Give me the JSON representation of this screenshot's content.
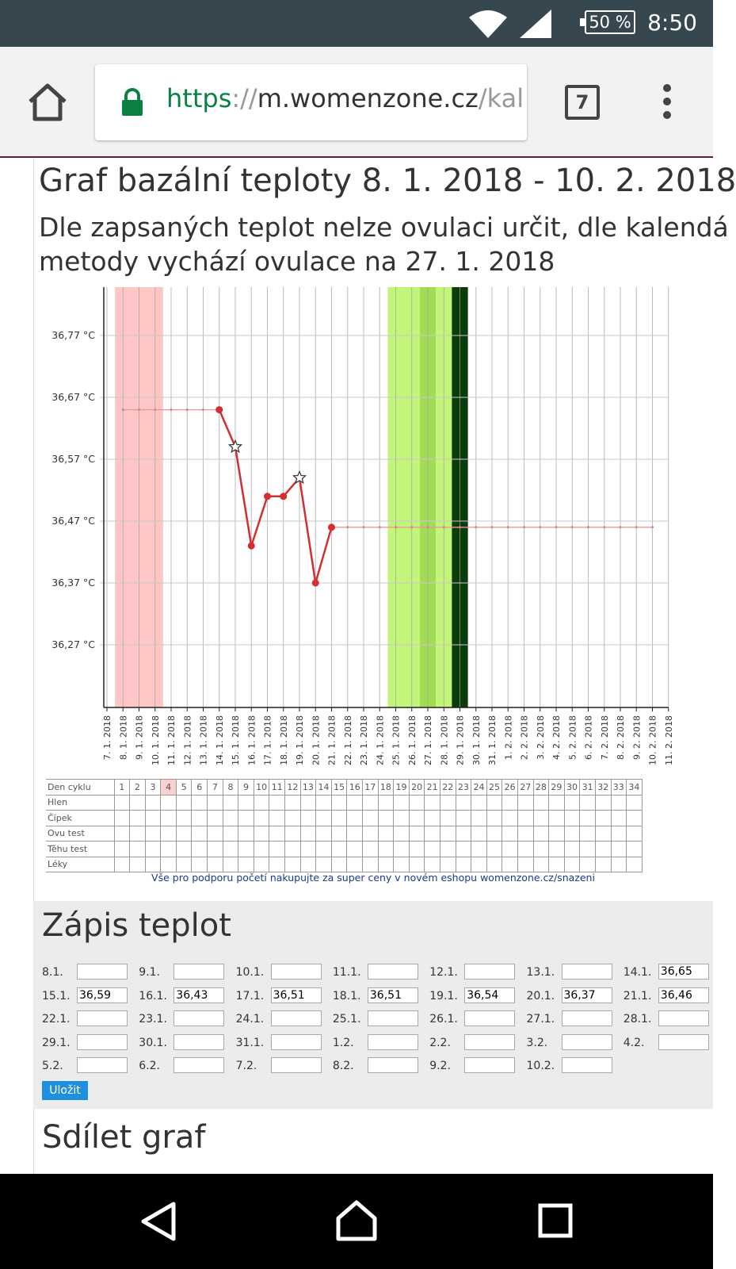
{
  "statusbar": {
    "battery": "50 %",
    "time": "8:50",
    "icons": [
      "wifi-icon",
      "signal-icon",
      "battery-icon"
    ]
  },
  "browser": {
    "url_scheme": "https",
    "url_sep": "://",
    "url_host": "m.womenzone.cz",
    "url_path": "/kal",
    "tab_count": "7",
    "icons": [
      "home-icon",
      "lock-icon",
      "menu-icon"
    ]
  },
  "page": {
    "title": "Graf bazální teploty 8. 1. 2018 - 10. 2. 2018",
    "subtitle_line1": "Dle zapsaných teplot nelze ovulaci určit, dle kalendá",
    "subtitle_line2": "metody vychází ovulace na 27. 1. 2018"
  },
  "chart_data": {
    "type": "line",
    "title": "",
    "xlabel": "",
    "ylabel": "",
    "ylim": [
      36.19,
      36.87
    ],
    "yticks": [
      "36,77 °C",
      "36,67 °C",
      "36,57 °C",
      "36,47 °C",
      "36,37 °C",
      "36,27 °C"
    ],
    "ytick_values": [
      36.77,
      36.67,
      36.57,
      36.47,
      36.37,
      36.27
    ],
    "x": [
      "7. 1. 2018",
      "8. 1. 2018",
      "9. 1. 2018",
      "10. 1. 2018",
      "11. 1. 2018",
      "12. 1. 2018",
      "13. 1. 2018",
      "14. 1. 2018",
      "15. 1. 2018",
      "16. 1. 2018",
      "17. 1. 2018",
      "18. 1. 2018",
      "19. 1. 2018",
      "20. 1. 2018",
      "21. 1. 2018",
      "22. 1. 2018",
      "23. 1. 2018",
      "24. 1. 2018",
      "25. 1. 2018",
      "26. 1. 2018",
      "27. 1. 2018",
      "28. 1. 2018",
      "29. 1. 2018",
      "30. 1. 2018",
      "31. 1. 2018",
      "1. 2. 2018",
      "2. 2. 2018",
      "3. 2. 2018",
      "4. 2. 2018",
      "5. 2. 2018",
      "6. 2. 2018",
      "7. 2. 2018",
      "8. 2. 2018",
      "9. 2. 2018",
      "10. 2. 2018",
      "11. 2. 2018"
    ],
    "series": [
      {
        "values": [
          null,
          36.65,
          36.65,
          36.65,
          36.65,
          36.65,
          36.65,
          36.65,
          36.59,
          36.43,
          36.51,
          36.51,
          36.54,
          36.37,
          36.46,
          36.46,
          36.46,
          36.46,
          36.46,
          36.46,
          36.46,
          36.46,
          36.46,
          36.46,
          36.46,
          36.46,
          36.46,
          36.46,
          36.46,
          36.46,
          36.46,
          36.46,
          36.46,
          36.46,
          36.46,
          null
        ],
        "entered": [
          false,
          false,
          false,
          false,
          false,
          false,
          false,
          true,
          true,
          true,
          true,
          true,
          true,
          true,
          true,
          false,
          false,
          false,
          false,
          false,
          false,
          false,
          false,
          false,
          false,
          false,
          false,
          false,
          false,
          false,
          false,
          false,
          false,
          false,
          false,
          false
        ],
        "star_points": [
          "15. 1. 2018",
          "19. 1. 2018"
        ],
        "color": "#d32f2f"
      }
    ],
    "bands": [
      {
        "from": "8. 1. 2018",
        "to": "10. 1. 2018",
        "color": "#ffc6c6"
      },
      {
        "from": "25. 1. 2018",
        "to": "26. 1. 2018",
        "color": "#c4f57b"
      },
      {
        "from": "27. 1. 2018",
        "to": "27. 1. 2018",
        "color": "#a2dc55"
      },
      {
        "from": "28. 1. 2018",
        "to": "28. 1. 2018",
        "color": "#c4f57b"
      },
      {
        "from": "29. 1. 2018",
        "to": "29. 1. 2018",
        "color": "#0b3d0b"
      }
    ],
    "grid": true,
    "legend": "none"
  },
  "cycle_table": {
    "rows": [
      "Den cyklu",
      "Hlen",
      "Čípek",
      "Ovu test",
      "Těhu test",
      "Léky"
    ],
    "days": [
      "1",
      "2",
      "3",
      "4",
      "5",
      "6",
      "7",
      "8",
      "9",
      "10",
      "11",
      "12",
      "13",
      "14",
      "15",
      "16",
      "17",
      "18",
      "19",
      "20",
      "21",
      "22",
      "23",
      "24",
      "25",
      "26",
      "27",
      "28",
      "29",
      "30",
      "31",
      "32",
      "33",
      "34"
    ],
    "highlight_day": "4"
  },
  "promo": "Vše pro podporu početí nakupujte za super ceny v novém eshopu womenzone.cz/snazeni",
  "zapis": {
    "title": "Zápis teplot",
    "entries": [
      {
        "date": "8.1.",
        "value": ""
      },
      {
        "date": "9.1.",
        "value": ""
      },
      {
        "date": "10.1.",
        "value": ""
      },
      {
        "date": "11.1.",
        "value": ""
      },
      {
        "date": "12.1.",
        "value": ""
      },
      {
        "date": "13.1.",
        "value": ""
      },
      {
        "date": "14.1.",
        "value": "36,65"
      },
      {
        "date": "15.1.",
        "value": "36,59"
      },
      {
        "date": "16.1.",
        "value": "36,43"
      },
      {
        "date": "17.1.",
        "value": "36,51"
      },
      {
        "date": "18.1.",
        "value": "36,51"
      },
      {
        "date": "19.1.",
        "value": "36,54"
      },
      {
        "date": "20.1.",
        "value": "36,37"
      },
      {
        "date": "21.1.",
        "value": "36,46"
      },
      {
        "date": "22.1.",
        "value": ""
      },
      {
        "date": "23.1.",
        "value": ""
      },
      {
        "date": "24.1.",
        "value": ""
      },
      {
        "date": "25.1.",
        "value": ""
      },
      {
        "date": "26.1.",
        "value": ""
      },
      {
        "date": "27.1.",
        "value": ""
      },
      {
        "date": "28.1.",
        "value": ""
      },
      {
        "date": "29.1.",
        "value": ""
      },
      {
        "date": "30.1.",
        "value": ""
      },
      {
        "date": "31.1.",
        "value": ""
      },
      {
        "date": "1.2.",
        "value": ""
      },
      {
        "date": "2.2.",
        "value": ""
      },
      {
        "date": "3.2.",
        "value": ""
      },
      {
        "date": "4.2.",
        "value": ""
      },
      {
        "date": "5.2.",
        "value": ""
      },
      {
        "date": "6.2.",
        "value": ""
      },
      {
        "date": "7.2.",
        "value": ""
      },
      {
        "date": "8.2.",
        "value": ""
      },
      {
        "date": "9.2.",
        "value": ""
      },
      {
        "date": "10.2.",
        "value": ""
      }
    ],
    "save_label": "Uložit"
  },
  "share_title": "Sdílet graf",
  "navbar": {
    "icons": [
      "back-icon",
      "home-nav-icon",
      "recents-icon"
    ]
  }
}
